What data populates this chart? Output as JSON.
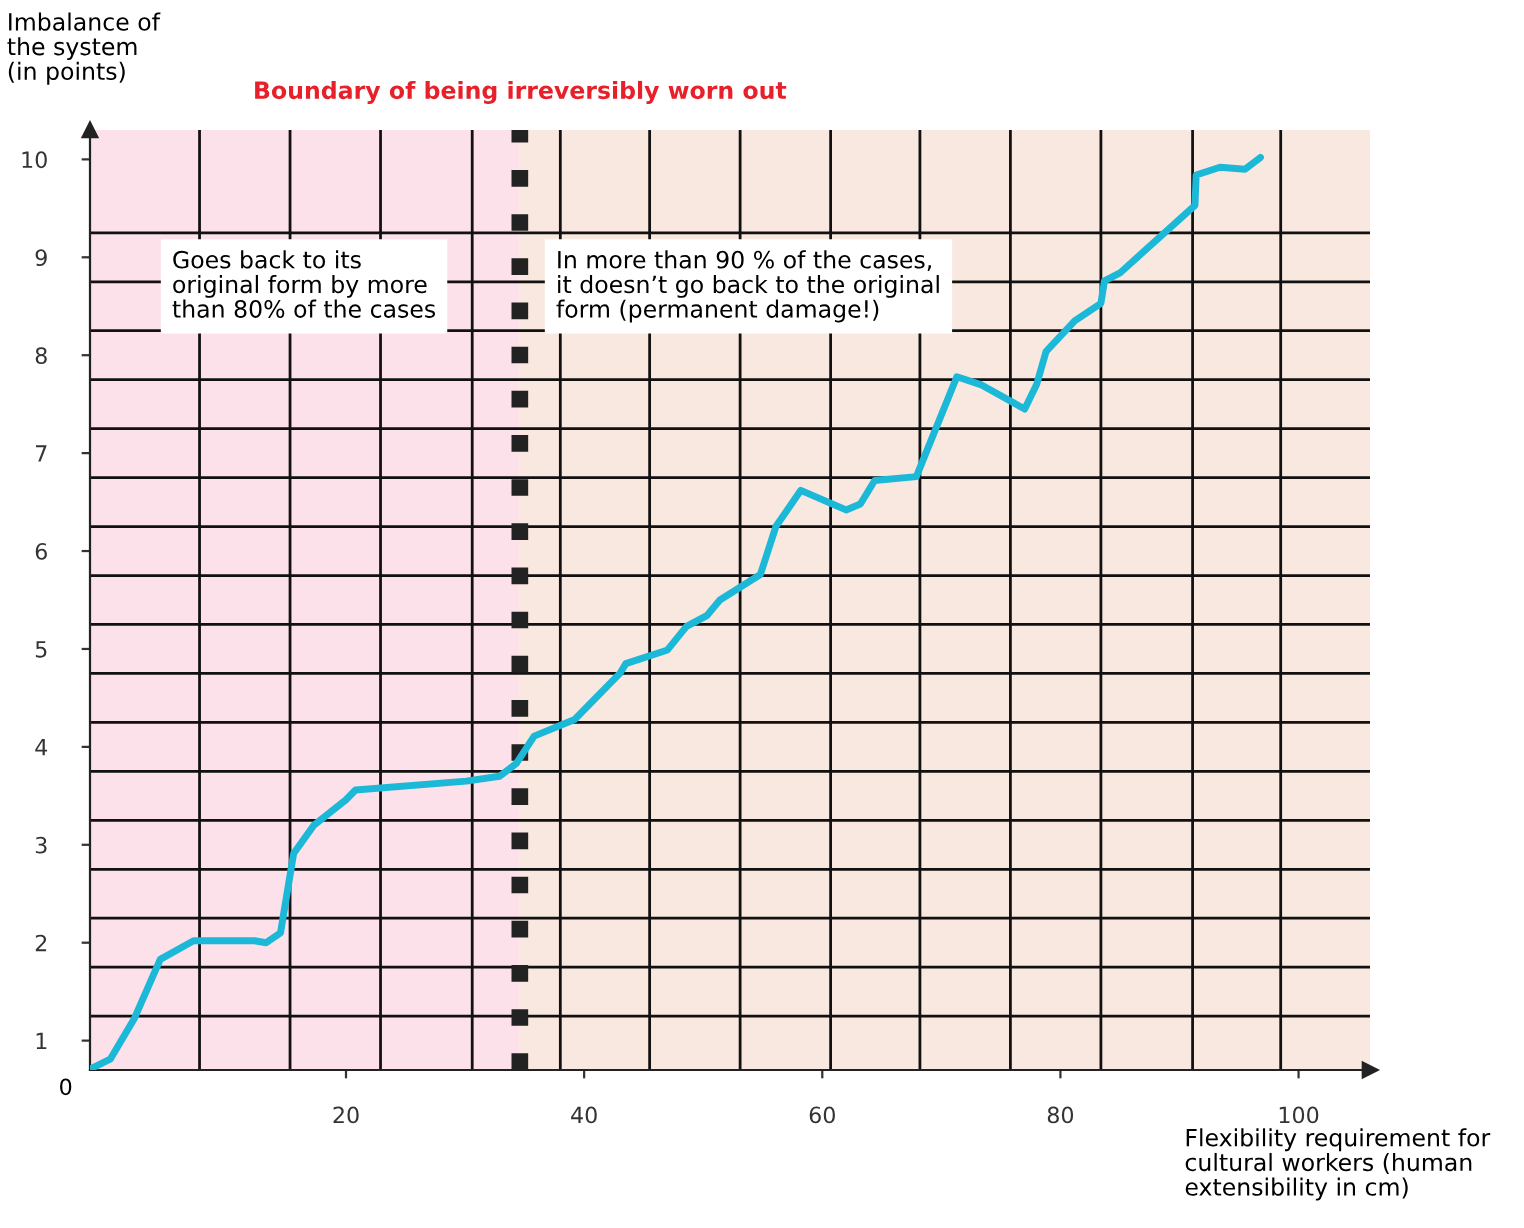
{
  "chart_data": {
    "type": "line",
    "xlabel": "Flexibility requirement for\ncultural workers (human\nextensibility in cm)",
    "ylabel": "Imbalance of\nthe system\n(in points)",
    "series": [
      {
        "color": "#1bb8d8",
        "x": [
          -1.5,
          0.2,
          2.2,
          4.4,
          7.2,
          12.3,
          13.3,
          14.5,
          15.6,
          17.3,
          20,
          20.8,
          30.1,
          32.9,
          34.3,
          35.8,
          39.2,
          43,
          43.5,
          47,
          48.6,
          50.3,
          51.4,
          54.8,
          56.1,
          58.2,
          62,
          63.2,
          64.4,
          67.9,
          71.3,
          73.3,
          77,
          78,
          78.8,
          81.2,
          83.4,
          83.7,
          85,
          91.3,
          91.4,
          93.4,
          95.5,
          96.8
        ],
        "values": [
          0.71,
          0.81,
          1.22,
          1.83,
          2.02,
          2.02,
          2.0,
          2.1,
          2.91,
          3.2,
          3.46,
          3.56,
          3.65,
          3.7,
          3.83,
          4.11,
          4.28,
          4.75,
          4.85,
          4.99,
          5.23,
          5.34,
          5.5,
          5.76,
          6.25,
          6.62,
          6.42,
          6.48,
          6.72,
          6.76,
          7.78,
          7.7,
          7.45,
          7.7,
          8.04,
          8.35,
          8.53,
          8.76,
          8.84,
          9.53,
          9.84,
          9.92,
          9.9,
          10.02
        ]
      }
    ],
    "xlim": [
      -1.5,
      106
    ],
    "ylim": [
      0.7,
      10.3
    ],
    "xticks": [
      {
        "value": 7.7,
        "label": null
      },
      {
        "value": 15.3,
        "label": null
      },
      {
        "value": 20,
        "label": "20"
      },
      {
        "value": 22.9,
        "label": null
      },
      {
        "value": 30.6,
        "label": null
      },
      {
        "value": 38.0,
        "label": null
      },
      {
        "value": 40,
        "label": "40"
      },
      {
        "value": 45.5,
        "label": null
      },
      {
        "value": 53.1,
        "label": null
      },
      {
        "value": 60,
        "label": "60"
      },
      {
        "value": 60.7,
        "label": null
      },
      {
        "value": 68.2,
        "label": null
      },
      {
        "value": 75.8,
        "label": null
      },
      {
        "value": 80,
        "label": "80"
      },
      {
        "value": 83.4,
        "label": null
      },
      {
        "value": 91.1,
        "label": null
      },
      {
        "value": 98.5,
        "label": null
      },
      {
        "value": 100,
        "label": "100"
      }
    ],
    "yticks": [
      {
        "value": 1,
        "label": "1"
      },
      {
        "value": 1.25,
        "label": null
      },
      {
        "value": 1.75,
        "label": null
      },
      {
        "value": 2,
        "label": "2"
      },
      {
        "value": 2.25,
        "label": null
      },
      {
        "value": 2.75,
        "label": null
      },
      {
        "value": 3,
        "label": "3"
      },
      {
        "value": 3.25,
        "label": null
      },
      {
        "value": 3.75,
        "label": null
      },
      {
        "value": 4,
        "label": "4"
      },
      {
        "value": 4.25,
        "label": null
      },
      {
        "value": 4.75,
        "label": null
      },
      {
        "value": 5,
        "label": "5"
      },
      {
        "value": 5.25,
        "label": null
      },
      {
        "value": 5.75,
        "label": null
      },
      {
        "value": 6,
        "label": "6"
      },
      {
        "value": 6.25,
        "label": null
      },
      {
        "value": 6.75,
        "label": null
      },
      {
        "value": 7,
        "label": "7"
      },
      {
        "value": 7.25,
        "label": null
      },
      {
        "value": 7.75,
        "label": null
      },
      {
        "value": 8,
        "label": "8"
      },
      {
        "value": 8.25,
        "label": null
      },
      {
        "value": 8.75,
        "label": null
      },
      {
        "value": 9,
        "label": "9"
      },
      {
        "value": 9.25,
        "label": null
      },
      {
        "value": 10,
        "label": "10"
      }
    ],
    "grid": true,
    "bands": [
      {
        "axis": "x",
        "from": -1.5,
        "to": 34.6,
        "color": "#fce0ea"
      },
      {
        "axis": "x",
        "from": 34.6,
        "to": 106,
        "color": "#f9e8e0"
      }
    ],
    "ref_lines": [
      {
        "axis": "x",
        "value": 34.6,
        "label": "Boundary of being irreversibly worn out",
        "color": "#222222",
        "line_style": "dotted"
      }
    ],
    "annotations": [
      "Goes back to its\noriginal form by more\nthan 80% of the cases",
      "In more than 90 % of the cases,\nit doesn’t go back to the original\nform (permanent damage!)",
      "0"
    ],
    "legend": false
  }
}
